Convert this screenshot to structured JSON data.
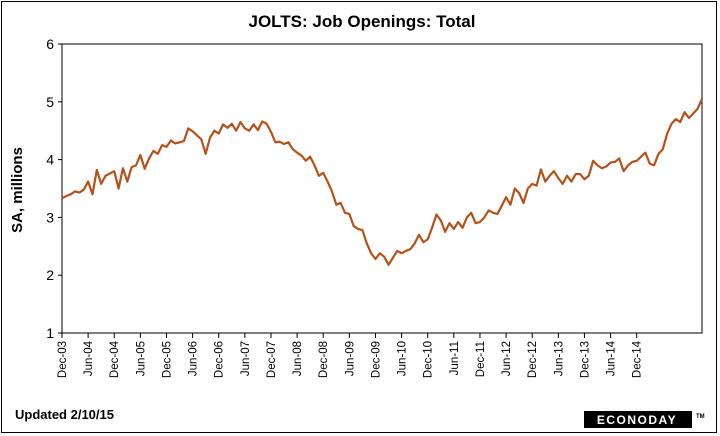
{
  "chart_data": {
    "type": "line",
    "title": "JOLTS: Job Openings: Total",
    "xlabel": "",
    "ylabel": "SA, millions",
    "ylim": [
      1,
      6
    ],
    "yticks": [
      "1",
      "2",
      "3",
      "4",
      "5",
      "6"
    ],
    "xticks": [
      "Dec-03",
      "Jun-04",
      "Dec-04",
      "Jun-05",
      "Dec-05",
      "Jun-06",
      "Dec-06",
      "Jun-07",
      "Dec-07",
      "Jun-08",
      "Dec-08",
      "Jun-09",
      "Dec-09",
      "Jun-10",
      "Dec-10",
      "Jun-11",
      "Dec-11",
      "Jun-12",
      "Dec-12",
      "Jun-13",
      "Dec-13",
      "Jun-14",
      "Dec-14"
    ],
    "grid": false,
    "line_color": "#b5521b",
    "x_start": "Dec-03",
    "x_end": "Dec-14",
    "values": [
      3.33,
      3.37,
      3.4,
      3.45,
      3.43,
      3.48,
      3.62,
      3.4,
      3.82,
      3.58,
      3.72,
      3.76,
      3.8,
      3.5,
      3.85,
      3.62,
      3.87,
      3.9,
      4.08,
      3.84,
      4.02,
      4.15,
      4.1,
      4.25,
      4.22,
      4.33,
      4.28,
      4.3,
      4.32,
      4.54,
      4.49,
      4.42,
      4.35,
      4.1,
      4.38,
      4.5,
      4.45,
      4.61,
      4.55,
      4.62,
      4.5,
      4.65,
      4.54,
      4.5,
      4.61,
      4.51,
      4.66,
      4.62,
      4.48,
      4.3,
      4.31,
      4.27,
      4.3,
      4.18,
      4.12,
      4.07,
      3.98,
      4.05,
      3.9,
      3.72,
      3.77,
      3.62,
      3.45,
      3.22,
      3.25,
      3.08,
      3.06,
      2.85,
      2.8,
      2.78,
      2.55,
      2.38,
      2.28,
      2.38,
      2.32,
      2.18,
      2.3,
      2.42,
      2.38,
      2.42,
      2.45,
      2.55,
      2.7,
      2.57,
      2.62,
      2.82,
      3.05,
      2.95,
      2.75,
      2.9,
      2.8,
      2.92,
      2.82,
      3.0,
      3.08,
      2.9,
      2.92,
      3.0,
      3.12,
      3.08,
      3.06,
      3.2,
      3.35,
      3.22,
      3.5,
      3.42,
      3.25,
      3.5,
      3.58,
      3.55,
      3.83,
      3.62,
      3.72,
      3.8,
      3.68,
      3.58,
      3.72,
      3.62,
      3.75,
      3.75,
      3.66,
      3.72,
      3.98,
      3.9,
      3.85,
      3.88,
      3.95,
      3.96,
      4.02,
      3.8,
      3.9,
      3.96,
      3.98,
      4.05,
      4.12,
      3.93,
      3.9,
      4.1,
      4.18,
      4.45,
      4.62,
      4.7,
      4.65,
      4.82,
      4.72,
      4.8,
      4.88,
      5.05
    ]
  },
  "footer": {
    "updated": "Updated 2/10/15"
  },
  "brand": {
    "logo_text": "ECONODAY",
    "trademark": "TM"
  }
}
